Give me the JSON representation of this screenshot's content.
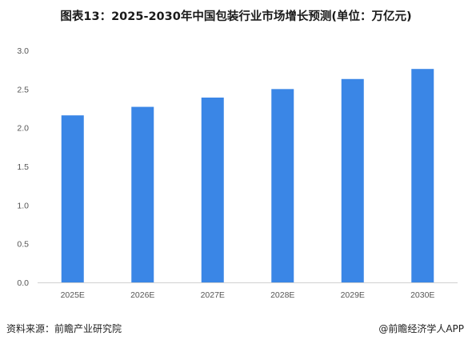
{
  "chart_data": {
    "type": "bar",
    "title": "图表13：2025-2030年中国包装行业市场增长预测(单位：万亿元)",
    "categories": [
      "2025E",
      "2026E",
      "2027E",
      "2028E",
      "2029E",
      "2030E"
    ],
    "values": [
      2.16,
      2.27,
      2.39,
      2.5,
      2.63,
      2.76
    ],
    "yticks": [
      "0.0",
      "0.5",
      "1.0",
      "1.5",
      "2.0",
      "2.5",
      "3.0"
    ],
    "ylim": [
      0,
      3.0
    ],
    "grid": false,
    "bar_color": "#3a86e6"
  },
  "footer": {
    "source": "资料来源：前瞻产业研究院",
    "brand": "@前瞻经济学人APP"
  }
}
